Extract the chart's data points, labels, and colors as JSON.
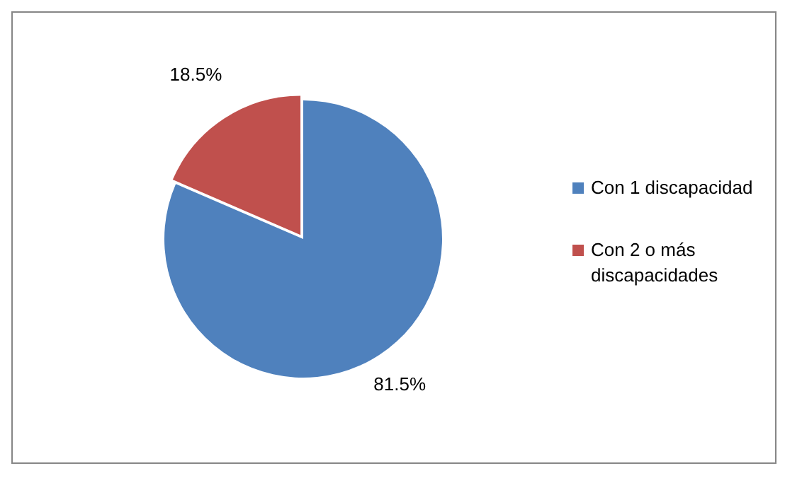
{
  "chart_data": {
    "type": "pie",
    "categories": [
      "Con 1 discapacidad",
      "Con 2 o más discapacidades"
    ],
    "values": [
      81.5,
      18.5
    ],
    "colors": [
      "#4f81bd",
      "#c0504d"
    ],
    "value_labels": [
      "81.5%",
      "18.5%"
    ],
    "legend": "right"
  }
}
